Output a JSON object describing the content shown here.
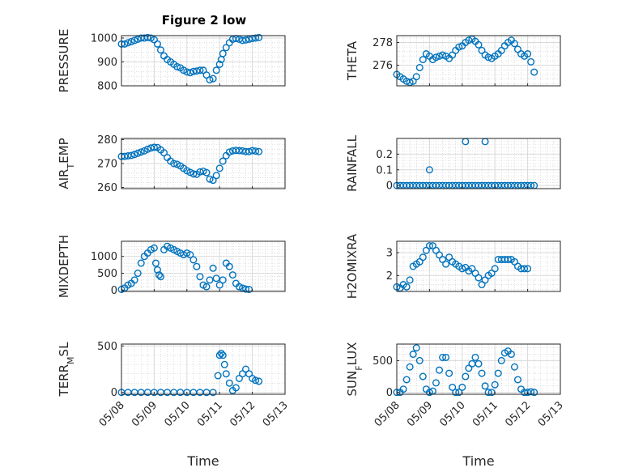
{
  "figure": {
    "title": "Figure 2 low"
  },
  "chart_data": [
    {
      "type": "scatter",
      "ylabel": "PRESSURE",
      "xlabel": "",
      "title": "Figure 2 low",
      "xlim": [
        "05/08",
        "05/13"
      ],
      "ylim": [
        800,
        1010
      ],
      "yticks": [
        "800",
        "900",
        "1000"
      ],
      "xticks": [
        "05/08",
        "05/09",
        "05/10",
        "05/11",
        "05/12",
        "05/13"
      ],
      "x": [
        0,
        0.1,
        0.2,
        0.3,
        0.4,
        0.5,
        0.6,
        0.7,
        0.8,
        0.9,
        1.0,
        1.1,
        1.2,
        1.3,
        1.4,
        1.5,
        1.6,
        1.7,
        1.8,
        1.9,
        2.0,
        2.1,
        2.2,
        2.3,
        2.4,
        2.5,
        2.6,
        2.7,
        2.8,
        2.9,
        3.0,
        3.05,
        3.1,
        3.2,
        3.3,
        3.4,
        3.5,
        3.6,
        3.7,
        3.8,
        3.9,
        4.0,
        4.1,
        4.2
      ],
      "y": [
        975,
        975,
        980,
        985,
        990,
        995,
        1000,
        1000,
        1002,
        1000,
        993,
        975,
        950,
        925,
        910,
        900,
        890,
        880,
        875,
        865,
        858,
        855,
        860,
        862,
        865,
        865,
        845,
        825,
        830,
        865,
        890,
        910,
        935,
        960,
        980,
        995,
        998,
        995,
        990,
        992,
        995,
        998,
        1000,
        1002
      ],
      "grid": true
    },
    {
      "type": "scatter",
      "ylabel": "THETA",
      "xlabel": "",
      "xlim": [
        "05/08",
        "05/13"
      ],
      "ylim": [
        274.2,
        278.6
      ],
      "yticks": [
        "276",
        "278"
      ],
      "xticks": [
        "05/08",
        "05/09",
        "05/10",
        "05/11",
        "05/12",
        "05/13"
      ],
      "x": [
        0,
        0.1,
        0.2,
        0.3,
        0.4,
        0.5,
        0.6,
        0.7,
        0.8,
        0.9,
        1.0,
        1.1,
        1.2,
        1.3,
        1.4,
        1.5,
        1.6,
        1.7,
        1.8,
        1.9,
        2.0,
        2.1,
        2.2,
        2.3,
        2.4,
        2.5,
        2.6,
        2.7,
        2.8,
        2.9,
        3.0,
        3.1,
        3.2,
        3.3,
        3.4,
        3.5,
        3.6,
        3.7,
        3.8,
        3.9,
        4.0,
        4.1,
        4.2
      ],
      "y": [
        275.2,
        275.0,
        274.8,
        274.6,
        274.5,
        274.6,
        275.0,
        275.8,
        276.5,
        277.0,
        276.8,
        276.5,
        276.7,
        276.8,
        276.9,
        276.8,
        276.6,
        276.9,
        277.3,
        277.6,
        277.7,
        278.0,
        278.2,
        278.3,
        278.1,
        277.8,
        277.3,
        276.9,
        276.7,
        276.6,
        276.8,
        277.0,
        277.3,
        277.7,
        278.0,
        278.2,
        277.9,
        277.4,
        277.0,
        276.8,
        277.0,
        276.3,
        275.4
      ],
      "grid": true
    },
    {
      "type": "scatter",
      "ylabel": "AIR_TEMP",
      "xlabel": "",
      "xlim": [
        "05/08",
        "05/13"
      ],
      "ylim": [
        259.5,
        280.5
      ],
      "yticks": [
        "260",
        "270",
        "280"
      ],
      "xticks": [
        "05/08",
        "05/09",
        "05/10",
        "05/11",
        "05/12",
        "05/13"
      ],
      "x": [
        0,
        0.1,
        0.2,
        0.3,
        0.4,
        0.5,
        0.6,
        0.7,
        0.8,
        0.9,
        1.0,
        1.1,
        1.2,
        1.3,
        1.4,
        1.5,
        1.6,
        1.7,
        1.8,
        1.9,
        2.0,
        2.1,
        2.2,
        2.3,
        2.4,
        2.5,
        2.6,
        2.7,
        2.8,
        2.9,
        3.0,
        3.1,
        3.2,
        3.3,
        3.4,
        3.5,
        3.6,
        3.7,
        3.8,
        3.9,
        4.0,
        4.1,
        4.2
      ],
      "y": [
        273,
        273,
        273.2,
        273.4,
        273.8,
        274.3,
        274.8,
        275.3,
        276,
        276.5,
        276.8,
        276.7,
        275.7,
        274.5,
        272.5,
        271,
        270,
        269.7,
        269,
        268,
        267,
        266.3,
        265.7,
        265.5,
        266.5,
        266.8,
        266.2,
        263.5,
        263,
        265,
        268,
        271,
        273.3,
        274.8,
        275.3,
        275.5,
        275.4,
        275.3,
        275,
        275,
        275.4,
        275.2,
        275
      ],
      "grid": true
    },
    {
      "type": "scatter",
      "ylabel": "RAINFALL",
      "xlabel": "",
      "xlim": [
        "05/08",
        "05/13"
      ],
      "ylim": [
        -0.02,
        0.3
      ],
      "yticks": [
        "0",
        "0.1",
        "0.2"
      ],
      "xticks": [
        "05/08",
        "05/09",
        "05/10",
        "05/11",
        "05/12",
        "05/13"
      ],
      "x": [
        0,
        0.1,
        0.2,
        0.3,
        0.4,
        0.5,
        0.6,
        0.7,
        0.8,
        0.9,
        1.0,
        1.1,
        1.2,
        1.3,
        1.4,
        1.5,
        1.6,
        1.7,
        1.8,
        1.9,
        2.0,
        2.1,
        2.2,
        2.3,
        2.4,
        2.5,
        2.6,
        2.7,
        2.8,
        2.9,
        3.0,
        3.1,
        3.2,
        3.3,
        3.4,
        3.5,
        3.6,
        3.7,
        3.8,
        3.9,
        4.0,
        4.1,
        4.2,
        1.0,
        2.1,
        2.7
      ],
      "y": [
        0,
        0,
        0,
        0,
        0,
        0,
        0,
        0,
        0,
        0,
        0,
        0,
        0,
        0,
        0,
        0,
        0,
        0,
        0,
        0,
        0,
        0,
        0,
        0,
        0,
        0,
        0,
        0,
        0,
        0,
        0,
        0,
        0,
        0,
        0,
        0,
        0,
        0,
        0,
        0,
        0,
        0,
        0,
        0.1,
        0.28,
        0.28
      ],
      "grid": true
    },
    {
      "type": "scatter",
      "ylabel": "MIXDEPTH",
      "xlabel": "",
      "xlim": [
        "05/08",
        "05/13"
      ],
      "ylim": [
        -40,
        1450
      ],
      "yticks": [
        "0",
        "500",
        "1000"
      ],
      "xticks": [
        "05/08",
        "05/09",
        "05/10",
        "05/11",
        "05/12",
        "05/13"
      ],
      "x": [
        0,
        0.1,
        0.2,
        0.3,
        0.4,
        0.5,
        0.6,
        0.7,
        0.8,
        0.9,
        1.0,
        1.05,
        1.1,
        1.15,
        1.2,
        1.3,
        1.4,
        1.5,
        1.6,
        1.7,
        1.8,
        1.9,
        2.0,
        2.1,
        2.2,
        2.3,
        2.4,
        2.5,
        2.6,
        2.7,
        2.8,
        2.9,
        3.0,
        3.1,
        3.2,
        3.3,
        3.4,
        3.5,
        3.6,
        3.7,
        3.8,
        3.9
      ],
      "y": [
        20,
        60,
        150,
        200,
        300,
        500,
        800,
        1000,
        1100,
        1200,
        1250,
        800,
        600,
        450,
        400,
        1200,
        1300,
        1250,
        1200,
        1150,
        1100,
        1050,
        1100,
        1050,
        900,
        700,
        400,
        150,
        100,
        300,
        650,
        350,
        150,
        300,
        800,
        700,
        450,
        200,
        100,
        60,
        30,
        20
      ],
      "grid": true
    },
    {
      "type": "scatter",
      "ylabel": "H2OMIXRA",
      "xlabel": "",
      "xlim": [
        "05/08",
        "05/13"
      ],
      "ylim": [
        1.3,
        3.5
      ],
      "yticks": [
        "2",
        "3"
      ],
      "xticks": [
        "05/08",
        "05/09",
        "05/10",
        "05/11",
        "05/12",
        "05/13"
      ],
      "x": [
        0,
        0.1,
        0.2,
        0.3,
        0.4,
        0.5,
        0.6,
        0.7,
        0.8,
        0.9,
        1.0,
        1.1,
        1.2,
        1.3,
        1.4,
        1.5,
        1.6,
        1.7,
        1.8,
        1.9,
        2.0,
        2.1,
        2.2,
        2.3,
        2.4,
        2.5,
        2.6,
        2.7,
        2.8,
        2.9,
        3.0,
        3.1,
        3.2,
        3.3,
        3.4,
        3.5,
        3.6,
        3.7,
        3.8,
        3.9,
        4.0
      ],
      "y": [
        1.5,
        1.45,
        1.6,
        1.5,
        1.8,
        2.4,
        2.5,
        2.6,
        2.8,
        3.1,
        3.3,
        3.3,
        3.1,
        2.9,
        2.7,
        2.5,
        2.8,
        2.6,
        2.5,
        2.4,
        2.3,
        2.35,
        2.2,
        2.3,
        2.1,
        1.9,
        1.6,
        1.8,
        2.0,
        2.1,
        2.3,
        2.7,
        2.7,
        2.7,
        2.7,
        2.7,
        2.6,
        2.4,
        2.3,
        2.3,
        2.3
      ],
      "grid": true
    },
    {
      "type": "scatter",
      "ylabel": "TERR_MSL",
      "xlabel": "Time",
      "xlim": [
        "05/08",
        "05/13"
      ],
      "ylim": [
        -20,
        520
      ],
      "yticks": [
        "0",
        "500"
      ],
      "xticks": [
        "05/08",
        "05/09",
        "05/10",
        "05/11",
        "05/12",
        "05/13"
      ],
      "x": [
        0,
        0.2,
        0.4,
        0.6,
        0.8,
        1.0,
        1.2,
        1.4,
        1.6,
        1.8,
        2.0,
        2.2,
        2.4,
        2.6,
        2.8,
        2.95,
        3.0,
        3.05,
        3.1,
        3.15,
        3.2,
        3.3,
        3.4,
        3.5,
        3.6,
        3.7,
        3.8,
        3.9,
        4.0,
        4.1,
        4.2
      ],
      "y": [
        0,
        0,
        0,
        0,
        0,
        0,
        0,
        0,
        0,
        0,
        0,
        0,
        0,
        0,
        0,
        180,
        400,
        420,
        400,
        300,
        200,
        100,
        20,
        50,
        150,
        200,
        250,
        200,
        150,
        130,
        120
      ],
      "grid": true
    },
    {
      "type": "scatter",
      "ylabel": "SUN_FLUX",
      "xlabel": "Time",
      "xlim": [
        "05/08",
        "05/13"
      ],
      "ylim": [
        -30,
        760
      ],
      "yticks": [
        "0",
        "500"
      ],
      "xticks": [
        "05/08",
        "05/09",
        "05/10",
        "05/11",
        "05/12",
        "05/13"
      ],
      "x": [
        0,
        0.1,
        0.2,
        0.3,
        0.4,
        0.5,
        0.6,
        0.7,
        0.8,
        0.9,
        1.0,
        1.1,
        1.2,
        1.3,
        1.4,
        1.5,
        1.6,
        1.7,
        1.8,
        1.9,
        2.0,
        2.1,
        2.2,
        2.3,
        2.4,
        2.5,
        2.6,
        2.7,
        2.8,
        2.9,
        3.0,
        3.1,
        3.2,
        3.3,
        3.4,
        3.5,
        3.6,
        3.7,
        3.8,
        3.9,
        4.0,
        4.1,
        4.2
      ],
      "y": [
        0,
        0,
        50,
        200,
        400,
        600,
        700,
        500,
        250,
        50,
        0,
        20,
        150,
        350,
        550,
        550,
        300,
        80,
        0,
        0,
        80,
        250,
        380,
        450,
        550,
        450,
        300,
        100,
        0,
        0,
        120,
        300,
        500,
        620,
        650,
        600,
        400,
        200,
        50,
        0,
        0,
        10,
        0
      ],
      "grid": true
    }
  ]
}
